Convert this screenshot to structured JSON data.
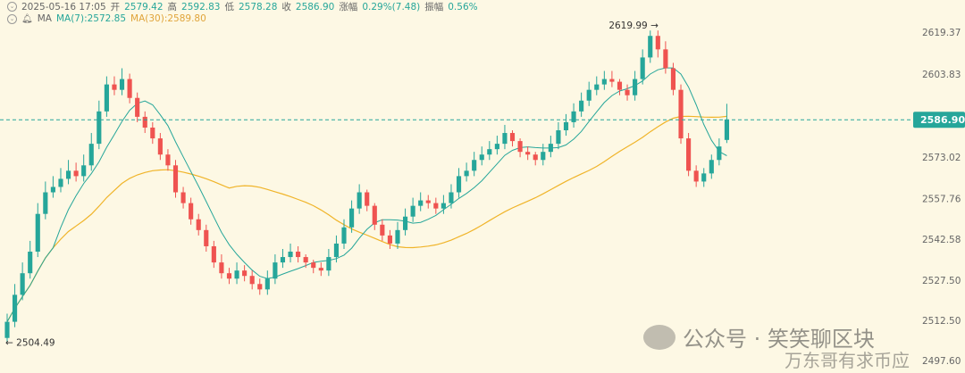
{
  "header": {
    "timestamp": "2025-05-16 17:05",
    "open_label": "开",
    "open": "2579.42",
    "high_label": "高",
    "high": "2592.83",
    "low_label": "低",
    "low": "2578.28",
    "close_label": "收",
    "close": "2586.90",
    "change_label": "涨幅",
    "change": "0.29%(7.48)",
    "amp_label": "振幅",
    "amp": "0.56%",
    "ma_label": "MA",
    "ma7": "MA(7):2572.85",
    "ma30": "MA(30):2589.80"
  },
  "watermark": {
    "line1": "公众号 · 笑笑聊区块",
    "line2": "万东哥有求币应"
  },
  "colors": {
    "up": "#26a69a",
    "down": "#ef5350",
    "ma7": "#26a69a",
    "ma30": "#f0b429",
    "background": "#fdf8e4",
    "price_line": "#26a69a"
  },
  "chart_data": {
    "type": "candlestick",
    "y_ticks": [
      "2619.37",
      "2603.83",
      "2588.29",
      "2573.02",
      "2557.76",
      "2542.58",
      "2527.50",
      "2512.50",
      "2497.60"
    ],
    "ylim": [
      2494.0,
      2628.0
    ],
    "current_price": "2586.90",
    "max_annotation": "2619.99",
    "min_annotation": "2504.49",
    "series": [
      {
        "name": "MA(7)",
        "value_label": "2572.85"
      },
      {
        "name": "MA(30)",
        "value_label": "2589.80"
      }
    ],
    "close": [
      2512,
      2522,
      2530,
      2538,
      2552,
      2560,
      2562,
      2565,
      2568,
      2566,
      2570,
      2578,
      2590,
      2600,
      2598,
      2602,
      2595,
      2588,
      2584,
      2580,
      2574,
      2570,
      2560,
      2556,
      2550,
      2546,
      2540,
      2534,
      2530,
      2528,
      2531,
      2529,
      2526,
      2524,
      2528,
      2534,
      2536,
      2538,
      2536,
      2534,
      2532,
      2531,
      2536,
      2541,
      2547,
      2554,
      2560,
      2555,
      2548,
      2544,
      2541,
      2546,
      2551,
      2555,
      2557,
      2556,
      2554,
      2556,
      2560,
      2566,
      2568,
      2572,
      2574,
      2576,
      2578,
      2582,
      2579,
      2575,
      2574,
      2572,
      2575,
      2578,
      2583,
      2586,
      2590,
      2594,
      2598,
      2600,
      2602,
      2601,
      2598,
      2596,
      2602,
      2610,
      2618,
      2613,
      2606,
      2598,
      2580,
      2568,
      2564,
      2567,
      2572,
      2577,
      2587
    ],
    "open": [
      2506,
      2512,
      2522,
      2530,
      2538,
      2552,
      2560,
      2562,
      2565,
      2568,
      2566,
      2570,
      2578,
      2590,
      2600,
      2598,
      2602,
      2595,
      2588,
      2584,
      2580,
      2574,
      2570,
      2560,
      2556,
      2550,
      2546,
      2540,
      2534,
      2530,
      2528,
      2531,
      2529,
      2526,
      2524,
      2528,
      2534,
      2536,
      2538,
      2536,
      2534,
      2532,
      2531,
      2536,
      2541,
      2547,
      2554,
      2560,
      2555,
      2548,
      2544,
      2541,
      2546,
      2551,
      2555,
      2557,
      2556,
      2554,
      2556,
      2560,
      2566,
      2568,
      2572,
      2574,
      2576,
      2578,
      2582,
      2579,
      2575,
      2574,
      2572,
      2575,
      2578,
      2583,
      2586,
      2590,
      2594,
      2598,
      2600,
      2602,
      2601,
      2598,
      2596,
      2602,
      2610,
      2618,
      2613,
      2606,
      2598,
      2580,
      2568,
      2564,
      2567,
      2572,
      2579.42
    ],
    "high": [
      2515,
      2526,
      2534,
      2542,
      2556,
      2564,
      2566,
      2569,
      2572,
      2571,
      2574,
      2582,
      2594,
      2603,
      2603,
      2606,
      2604,
      2597,
      2590,
      2586,
      2582,
      2576,
      2572,
      2562,
      2558,
      2552,
      2548,
      2542,
      2537,
      2532,
      2534,
      2533,
      2531,
      2528,
      2531,
      2537,
      2539,
      2541,
      2540,
      2537,
      2535,
      2534,
      2539,
      2544,
      2550,
      2557,
      2563,
      2561,
      2556,
      2550,
      2546,
      2549,
      2554,
      2558,
      2560,
      2559,
      2558,
      2559,
      2563,
      2569,
      2571,
      2575,
      2577,
      2579,
      2581,
      2585,
      2583,
      2580,
      2577,
      2575,
      2578,
      2581,
      2586,
      2589,
      2593,
      2597,
      2601,
      2603,
      2605,
      2605,
      2602,
      2600,
      2605,
      2613,
      2619.99,
      2620,
      2616,
      2608,
      2600,
      2582,
      2570,
      2569,
      2574,
      2580,
      2592.83
    ],
    "low": [
      2504.49,
      2510,
      2520,
      2528,
      2536,
      2550,
      2558,
      2560,
      2563,
      2564,
      2564,
      2568,
      2576,
      2588,
      2596,
      2596,
      2593,
      2586,
      2582,
      2578,
      2572,
      2568,
      2558,
      2554,
      2548,
      2544,
      2538,
      2532,
      2528,
      2526,
      2526,
      2527,
      2524,
      2522,
      2522,
      2526,
      2532,
      2534,
      2534,
      2532,
      2530,
      2529,
      2529,
      2534,
      2539,
      2545,
      2552,
      2553,
      2546,
      2542,
      2539,
      2539,
      2544,
      2549,
      2553,
      2554,
      2552,
      2552,
      2554,
      2558,
      2564,
      2566,
      2570,
      2572,
      2574,
      2576,
      2577,
      2573,
      2572,
      2570,
      2570,
      2573,
      2576,
      2581,
      2584,
      2588,
      2592,
      2596,
      2598,
      2599,
      2596,
      2594,
      2594,
      2600,
      2608,
      2610,
      2604,
      2596,
      2578,
      2566,
      2562,
      2562,
      2565,
      2570,
      2578.28
    ]
  }
}
